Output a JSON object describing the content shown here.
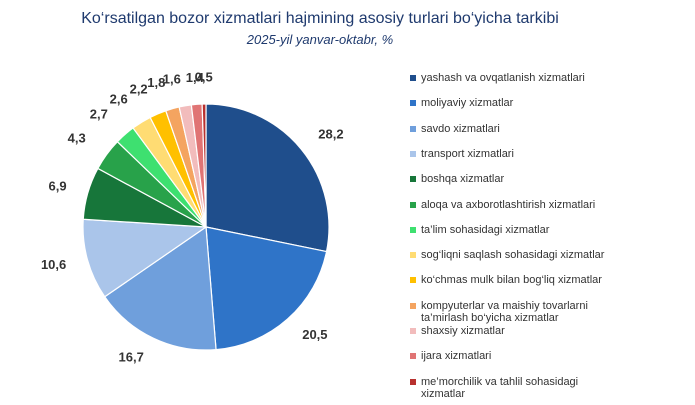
{
  "chart_data": {
    "type": "pie",
    "title": "Ko‘rsatilgan bozor xizmatlari hajmining asosiy turlari bo‘yicha tarkibi",
    "subtitle": "2025-yil yanvar-oktabr, %",
    "categories": [
      "yashash va ovqatlanish xizmatlari",
      "moliyaviy xizmatlar",
      "savdo xizmatlari",
      "transport xizmatlari",
      "boshqa xizmatlar",
      "aloqa va axborotlashtirish xizmatlari",
      "ta’lim sohasidagi xizmatlar",
      "sog‘liqni saqlash sohasidagi xizmatlar",
      "ko‘chmas mulk bilan bog‘liq xizmatlar",
      "kompyuterlar va maishiy tovarlarni ta’mirlash bo‘yicha xizmatlar",
      "shaxsiy xizmatlar",
      "ijara xizmatlari",
      "me’morchilik va tahlil sohasidagi xizmatlar"
    ],
    "values": [
      28.2,
      20.5,
      16.7,
      10.6,
      6.9,
      4.3,
      2.7,
      2.6,
      2.2,
      1.8,
      1.6,
      1.4,
      0.5
    ],
    "value_labels": [
      "28,2",
      "20,5",
      "16,7",
      "10,6",
      "6,9",
      "4,3",
      "2,7",
      "2,6",
      "2,2",
      "1,8",
      "1,6",
      "1,4",
      "0,5"
    ],
    "colors": [
      "#1f4e8c",
      "#2f74c8",
      "#6f9fdc",
      "#aac5ea",
      "#17763a",
      "#28a24a",
      "#3ee070",
      "#ffdc73",
      "#ffc000",
      "#f4a460",
      "#f2bcbc",
      "#e07474",
      "#b8312f"
    ]
  }
}
